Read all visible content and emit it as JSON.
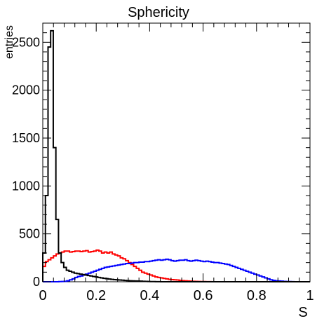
{
  "chart_data": {
    "type": "histogram",
    "title": "Sphericity",
    "xlabel": "S",
    "ylabel": "entries",
    "xlim": [
      0,
      1
    ],
    "ylim": [
      0,
      2700
    ],
    "bins": 100,
    "x_ticks": [
      {
        "value": 0,
        "label": "0"
      },
      {
        "value": 0.2,
        "label": "0.2"
      },
      {
        "value": 0.4,
        "label": "0.4"
      },
      {
        "value": 0.6,
        "label": "0.6"
      },
      {
        "value": 0.8,
        "label": "0.8"
      },
      {
        "value": 1,
        "label": "1"
      }
    ],
    "y_ticks": [
      {
        "value": 0,
        "label": "0"
      },
      {
        "value": 500,
        "label": "500"
      },
      {
        "value": 1000,
        "label": "1000"
      },
      {
        "value": 1500,
        "label": "1500"
      },
      {
        "value": 2000,
        "label": "2000"
      },
      {
        "value": 2500,
        "label": "2500"
      }
    ],
    "series": [
      {
        "color": "#ff0000",
        "values": [
          160,
          210,
          230,
          250,
          270,
          290,
          300,
          310,
          320,
          320,
          310,
          315,
          320,
          320,
          315,
          320,
          325,
          310,
          315,
          320,
          330,
          320,
          300,
          310,
          300,
          310,
          290,
          280,
          270,
          250,
          240,
          220,
          200,
          180,
          160,
          140,
          120,
          100,
          90,
          80,
          70,
          60,
          50,
          45,
          40,
          35,
          30,
          25,
          22,
          20,
          18,
          15,
          12,
          10,
          8,
          6,
          5,
          4,
          3,
          2,
          2,
          1,
          1,
          0,
          0,
          0,
          0,
          0,
          0,
          0,
          0,
          0,
          0,
          0,
          0,
          0,
          0,
          0,
          0,
          0,
          0,
          0,
          0,
          0,
          0,
          0,
          0,
          0,
          0,
          0,
          0,
          0,
          0,
          0,
          0,
          0,
          0,
          0,
          0,
          0
        ]
      },
      {
        "color": "#0000ff",
        "values": [
          0,
          0,
          0,
          0,
          0,
          0,
          2,
          3,
          5,
          10,
          20,
          30,
          45,
          55,
          60,
          70,
          80,
          90,
          100,
          110,
          120,
          130,
          140,
          150,
          155,
          160,
          165,
          170,
          175,
          180,
          185,
          190,
          190,
          195,
          200,
          200,
          205,
          205,
          210,
          210,
          215,
          220,
          225,
          230,
          225,
          230,
          235,
          230,
          220,
          215,
          220,
          225,
          225,
          230,
          220,
          215,
          220,
          225,
          220,
          215,
          210,
          215,
          210,
          205,
          200,
          200,
          195,
          190,
          185,
          180,
          170,
          160,
          150,
          140,
          130,
          120,
          110,
          100,
          90,
          80,
          70,
          60,
          50,
          40,
          30,
          20,
          15,
          10,
          8,
          6,
          4,
          3,
          2,
          1,
          0,
          0,
          0,
          0,
          0,
          0
        ]
      },
      {
        "color": "#000000",
        "values": [
          300,
          900,
          2450,
          2620,
          1400,
          650,
          300,
          200,
          150,
          120,
          110,
          100,
          90,
          85,
          80,
          75,
          70,
          65,
          60,
          55,
          50,
          45,
          40,
          36,
          32,
          28,
          25,
          22,
          20,
          18,
          16,
          14,
          12,
          10,
          9,
          8,
          7,
          6,
          5,
          4,
          3,
          2,
          2,
          1,
          1,
          0,
          0,
          0,
          0,
          0,
          0,
          0,
          0,
          0,
          0,
          0,
          0,
          0,
          0,
          0,
          0,
          0,
          0,
          0,
          0,
          0,
          0,
          0,
          0,
          0,
          0,
          0,
          0,
          0,
          0,
          0,
          0,
          0,
          0,
          0,
          0,
          0,
          0,
          0,
          0,
          0,
          0,
          0,
          0,
          0,
          0,
          0,
          0,
          0,
          0,
          0,
          0,
          0,
          0,
          0,
          0,
          0
        ]
      }
    ]
  }
}
